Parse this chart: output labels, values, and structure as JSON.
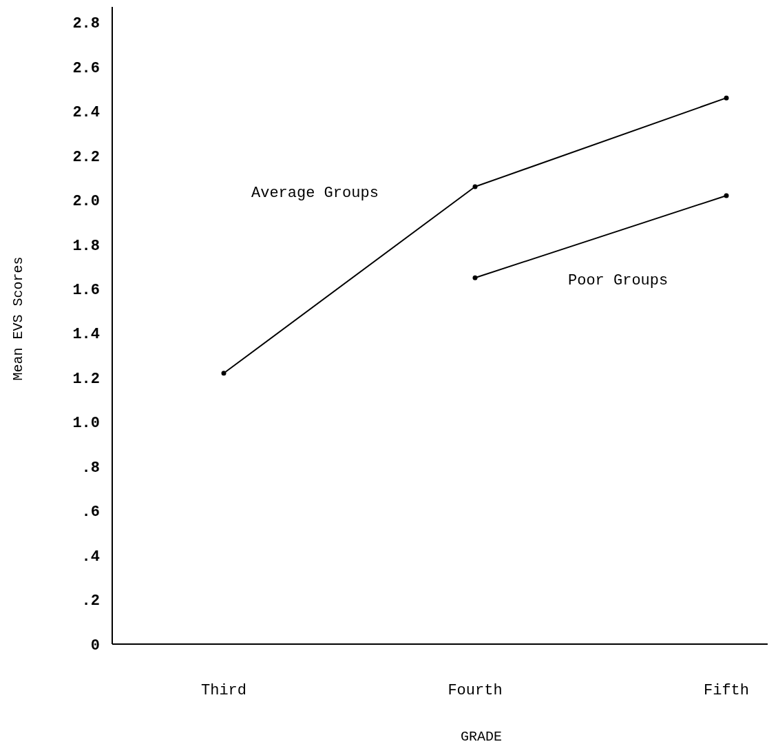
{
  "chart_data": {
    "type": "line",
    "xlabel": "GRADE",
    "ylabel": "Mean EVS Scores",
    "categories": [
      "Third",
      "Fourth",
      "Fifth"
    ],
    "ylim": [
      0,
      2.87
    ],
    "yticks": [
      0,
      {
        "value": 0.2,
        "label": ".2"
      },
      {
        "value": 0.4,
        "label": ".4"
      },
      {
        "value": 0.6,
        "label": ".6"
      },
      {
        "value": 0.8,
        "label": ".8"
      },
      {
        "value": 1.0,
        "label": "1.0"
      },
      1.2,
      1.4,
      1.6,
      1.8,
      {
        "value": 2.0,
        "label": "2.0"
      },
      2.2,
      2.4,
      2.6,
      2.8
    ],
    "marker": "circle",
    "line_style": "solid",
    "grid": false,
    "series": [
      {
        "name": "Average Groups",
        "color": "#000000",
        "values": [
          1.22,
          2.06,
          2.46
        ]
      },
      {
        "name": "Poor Groups",
        "color": "#000000",
        "values": [
          null,
          1.65,
          2.02
        ]
      }
    ]
  }
}
